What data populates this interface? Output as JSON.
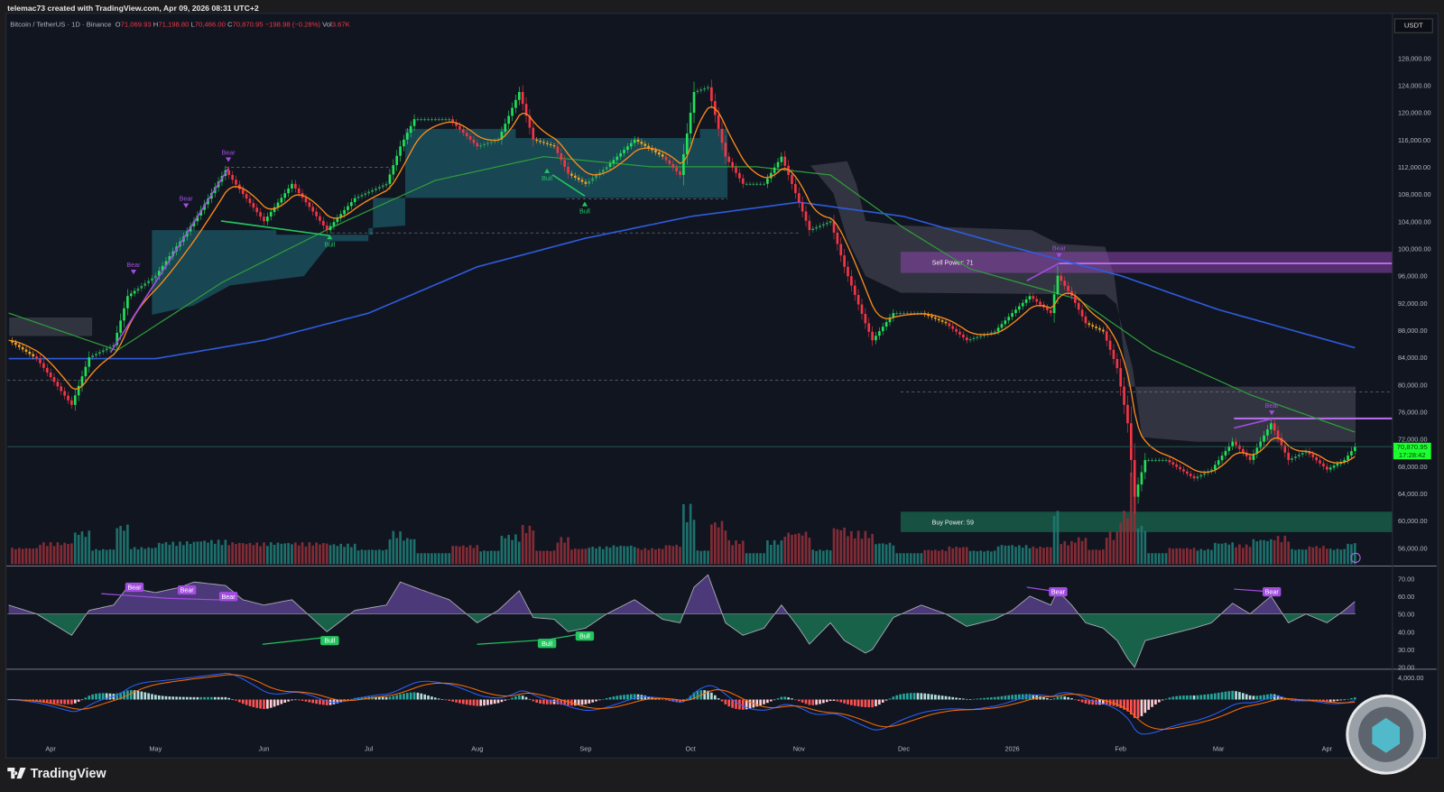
{
  "header": {
    "credit": "telemac73 created with TradingView.com, Apr 09, 2026 08:31 UTC+2",
    "symbol": "Bitcoin / TetherUS · 1D · Binance",
    "open_label": "O",
    "open": "71,069.93",
    "high_label": "H",
    "high": "71,198.80",
    "low_label": "L",
    "low": "70,466.00",
    "close_label": "C",
    "close": "70,870.95",
    "change": "−198.98 (−0.28%)",
    "vol_label": "Vol",
    "vol": "3.67K"
  },
  "axis": {
    "currency": "USDT",
    "price_ticks": [
      "128,000.00",
      "124,000.00",
      "120,000.00",
      "116,000.00",
      "112,000.00",
      "108,000.00",
      "104,000.00",
      "100,000.00",
      "96,000.00",
      "92,000.00",
      "88,000.00",
      "84,000.00",
      "80,000.00",
      "76,000.00",
      "72,000.00",
      "68,000.00",
      "64,000.00",
      "60,000.00",
      "56,000.00"
    ],
    "rsi_ticks": [
      "70.00",
      "60.00",
      "50.00",
      "40.00",
      "30.00",
      "20.00"
    ],
    "macd_ticks": [
      "4,000.00"
    ],
    "date_ticks": [
      "Apr",
      "May",
      "Jun",
      "Jul",
      "Aug",
      "Sep",
      "Oct",
      "Nov",
      "Dec",
      "2026",
      "Feb",
      "Mar",
      "Apr"
    ]
  },
  "last_price": {
    "price": "70,870.95",
    "countdown": "17:28:42"
  },
  "zones": {
    "sell_label": "Sell Power: 71",
    "buy_label": "Buy Power: 59"
  },
  "signals": {
    "price_labels": [
      "Bear",
      "Bear",
      "Bear",
      "Bull",
      "Bull",
      "Bull",
      "Bear",
      "Bear"
    ],
    "rsi_labels": [
      "Bear",
      "Bear",
      "Bear",
      "Bull",
      "Bull",
      "Bull",
      "Bear",
      "Bear"
    ]
  },
  "footer": {
    "brand": "TradingView"
  },
  "colors": {
    "up": "#22e05a",
    "up_weak": "#2e9e5a",
    "down": "#f23645",
    "down_weak": "#f5a623",
    "ema": "#ff8c1a",
    "ma_green": "#2e9e3a",
    "ma_blue": "#2f5bdc",
    "bear": "#a24de0",
    "bull": "#22c55e",
    "last_price": "#1bff2f"
  },
  "chart_data": {
    "type": "candlestick",
    "title": "Bitcoin / TetherUS · 1D · Binance",
    "ylim": [
      54000,
      130000
    ],
    "dates": [
      "2025-03-20",
      "2025-03-28",
      "2025-04-07",
      "2025-04-12",
      "2025-04-19",
      "2025-04-23",
      "2025-05-01",
      "2025-05-08",
      "2025-05-12",
      "2025-05-21",
      "2025-05-26",
      "2025-06-01",
      "2025-06-09",
      "2025-06-19",
      "2025-06-27",
      "2025-07-06",
      "2025-07-10",
      "2025-07-14",
      "2025-07-24",
      "2025-08-01",
      "2025-08-07",
      "2025-08-13",
      "2025-08-17",
      "2025-08-23",
      "2025-08-27",
      "2025-09-01",
      "2025-09-07",
      "2025-09-15",
      "2025-09-23",
      "2025-09-28",
      "2025-10-02",
      "2025-10-06",
      "2025-10-11",
      "2025-10-16",
      "2025-10-22",
      "2025-10-27",
      "2025-11-01",
      "2025-11-04",
      "2025-11-10",
      "2025-11-14",
      "2025-11-20",
      "2025-11-22",
      "2025-11-28",
      "2025-12-06",
      "2025-12-13",
      "2025-12-19",
      "2025-12-27",
      "2026-01-01",
      "2026-01-06",
      "2026-01-12",
      "2026-01-14",
      "2026-01-18",
      "2026-01-22",
      "2026-01-27",
      "2026-01-31",
      "2026-02-03",
      "2026-02-05",
      "2026-02-08",
      "2026-02-14",
      "2026-02-22",
      "2026-02-27",
      "2026-03-05",
      "2026-03-10",
      "2026-03-16",
      "2026-03-21",
      "2026-03-26",
      "2026-04-01",
      "2026-04-06",
      "2026-04-09"
    ],
    "close": [
      86500,
      83800,
      77000,
      84000,
      85800,
      93000,
      96000,
      101000,
      104000,
      111500,
      108000,
      104000,
      109500,
      102700,
      107400,
      109500,
      115000,
      119000,
      119000,
      115000,
      116000,
      123000,
      116000,
      115000,
      111000,
      109500,
      112000,
      116000,
      113500,
      110800,
      123000,
      123700,
      113500,
      109500,
      109500,
      113500,
      106800,
      102700,
      104000,
      97300,
      89000,
      86500,
      90500,
      90500,
      89000,
      86500,
      87800,
      90500,
      93000,
      90500,
      96000,
      93000,
      89000,
      87800,
      82400,
      74300,
      63500,
      68900,
      68900,
      66200,
      67500,
      71600,
      68900,
      74300,
      68900,
      70200,
      67500,
      68900,
      70870.95
    ],
    "rsi": [
      55,
      50,
      38,
      52,
      55,
      65,
      62,
      65,
      68,
      66,
      58,
      55,
      58,
      40,
      52,
      55,
      68,
      65,
      58,
      45,
      52,
      63,
      48,
      47,
      40,
      42,
      50,
      58,
      47,
      45,
      65,
      72,
      45,
      38,
      42,
      55,
      42,
      33,
      45,
      35,
      28,
      30,
      48,
      55,
      50,
      43,
      47,
      52,
      60,
      55,
      63,
      55,
      45,
      42,
      35,
      25,
      20,
      35,
      38,
      42,
      45,
      56,
      50,
      60,
      45,
      50,
      45,
      52,
      57
    ],
    "ma_green": {
      "dates": [
        "2025-03-20",
        "2025-04-20",
        "2025-05-20",
        "2025-06-20",
        "2025-07-20",
        "2025-08-20",
        "2025-09-20",
        "2025-10-20",
        "2025-11-10",
        "2025-12-01",
        "2025-12-20",
        "2026-01-20",
        "2026-02-10",
        "2026-03-10",
        "2026-04-09"
      ],
      "values": [
        90500,
        85000,
        95000,
        103000,
        110000,
        113500,
        112000,
        112000,
        110800,
        103000,
        97000,
        92500,
        85000,
        78500,
        73000
      ]
    },
    "ma_blue": {
      "dates": [
        "2025-03-20",
        "2025-05-01",
        "2025-06-01",
        "2025-07-01",
        "2025-08-01",
        "2025-09-01",
        "2025-10-01",
        "2025-11-01",
        "2025-12-01",
        "2026-01-01",
        "2026-02-01",
        "2026-03-01",
        "2026-04-09"
      ],
      "values": [
        83800,
        83800,
        86500,
        90500,
        97300,
        101500,
        104700,
        106800,
        104700,
        100200,
        96000,
        91000,
        85400
      ]
    },
    "sell_zone": [
      96400,
      99500
    ],
    "buy_zone": [
      58300,
      61300
    ],
    "rsi_ylim": [
      20,
      70
    ],
    "grid": false
  }
}
